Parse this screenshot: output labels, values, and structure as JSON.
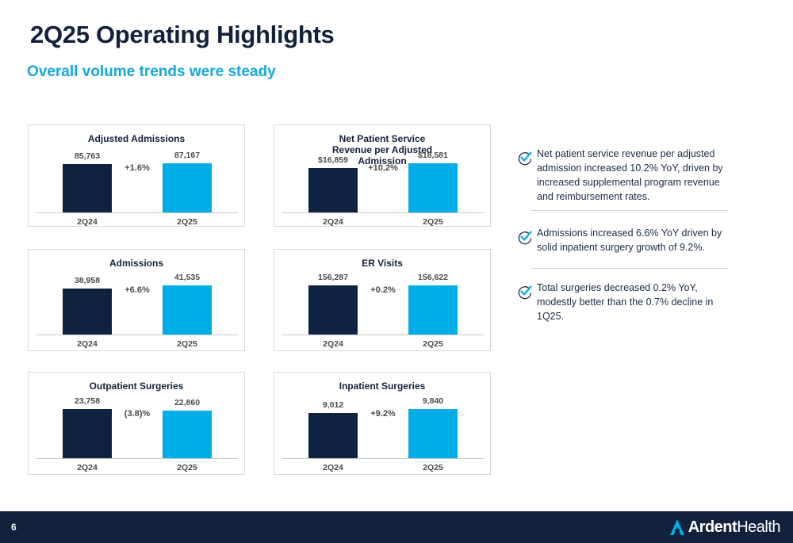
{
  "header": {
    "title": "2Q25 Operating Highlights",
    "subtitle": "Overall volume trends were steady"
  },
  "colors": {
    "series_2q24": "#0f2240",
    "series_2q25": "#00ade6",
    "accent": "#14a8de",
    "footer": "#13213d"
  },
  "chart_data": [
    {
      "type": "bar",
      "title": "Adjusted Admissions",
      "categories": [
        "2Q24",
        "2Q25"
      ],
      "values": [
        85763,
        87167
      ],
      "value_labels": [
        "85,763",
        "87,167"
      ],
      "change_label": "+1.6%"
    },
    {
      "type": "bar",
      "title": "Net Patient Service Revenue per Adjusted Admission",
      "categories": [
        "2Q24",
        "2Q25"
      ],
      "values": [
        16859,
        18581
      ],
      "value_labels": [
        "$16,859",
        "$18,581"
      ],
      "change_label": "+10.2%"
    },
    {
      "type": "bar",
      "title": "Admissions",
      "categories": [
        "2Q24",
        "2Q25"
      ],
      "values": [
        38958,
        41535
      ],
      "value_labels": [
        "38,958",
        "41,535"
      ],
      "change_label": "+6.6%"
    },
    {
      "type": "bar",
      "title": "ER Visits",
      "categories": [
        "2Q24",
        "2Q25"
      ],
      "values": [
        156287,
        156622
      ],
      "value_labels": [
        "156,287",
        "156,622"
      ],
      "change_label": "+0.2%"
    },
    {
      "type": "bar",
      "title": "Outpatient Surgeries",
      "categories": [
        "2Q24",
        "2Q25"
      ],
      "values": [
        23758,
        22860
      ],
      "value_labels": [
        "23,758",
        "22,860"
      ],
      "change_label": "(3.8)%"
    },
    {
      "type": "bar",
      "title": "Inpatient Surgeries",
      "categories": [
        "2Q24",
        "2Q25"
      ],
      "values": [
        9012,
        9840
      ],
      "value_labels": [
        "9,012",
        "9,840"
      ],
      "change_label": "+9.2%"
    }
  ],
  "bullets": [
    {
      "icon": "checkmark-icon",
      "text": "Net patient service revenue per adjusted admission increased 10.2% YoY, driven by increased supplemental program revenue and reimbursement rates."
    },
    {
      "icon": "checkmark-icon",
      "text": "Admissions increased 6.6% YoY driven by solid inpatient surgery growth of 9.2%."
    },
    {
      "icon": "checkmark-icon",
      "text": "Total surgeries decreased 0.2% YoY, modestly better than the 0.7% decline in 1Q25."
    }
  ],
  "footer": {
    "page_number": "6",
    "brand_name_bold": "Ardent",
    "brand_name_regular": "Health"
  }
}
